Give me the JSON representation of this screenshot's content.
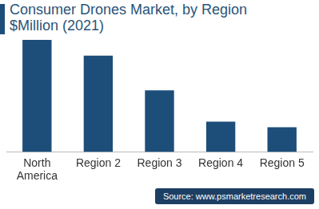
{
  "chart_data": {
    "type": "bar",
    "title": [
      "Consumer Drones Market, by Region",
      "$Million (2021)"
    ],
    "categories": [
      "North America",
      "Region 2",
      "Region 3",
      "Region 4",
      "Region 5"
    ],
    "values": [
      100,
      86,
      55,
      27,
      22
    ],
    "color": "#1d4e7a",
    "ylim": [
      0,
      100
    ],
    "grid": false,
    "tick_labels": "x",
    "source": "Source: www.psmarketresearch.com"
  }
}
